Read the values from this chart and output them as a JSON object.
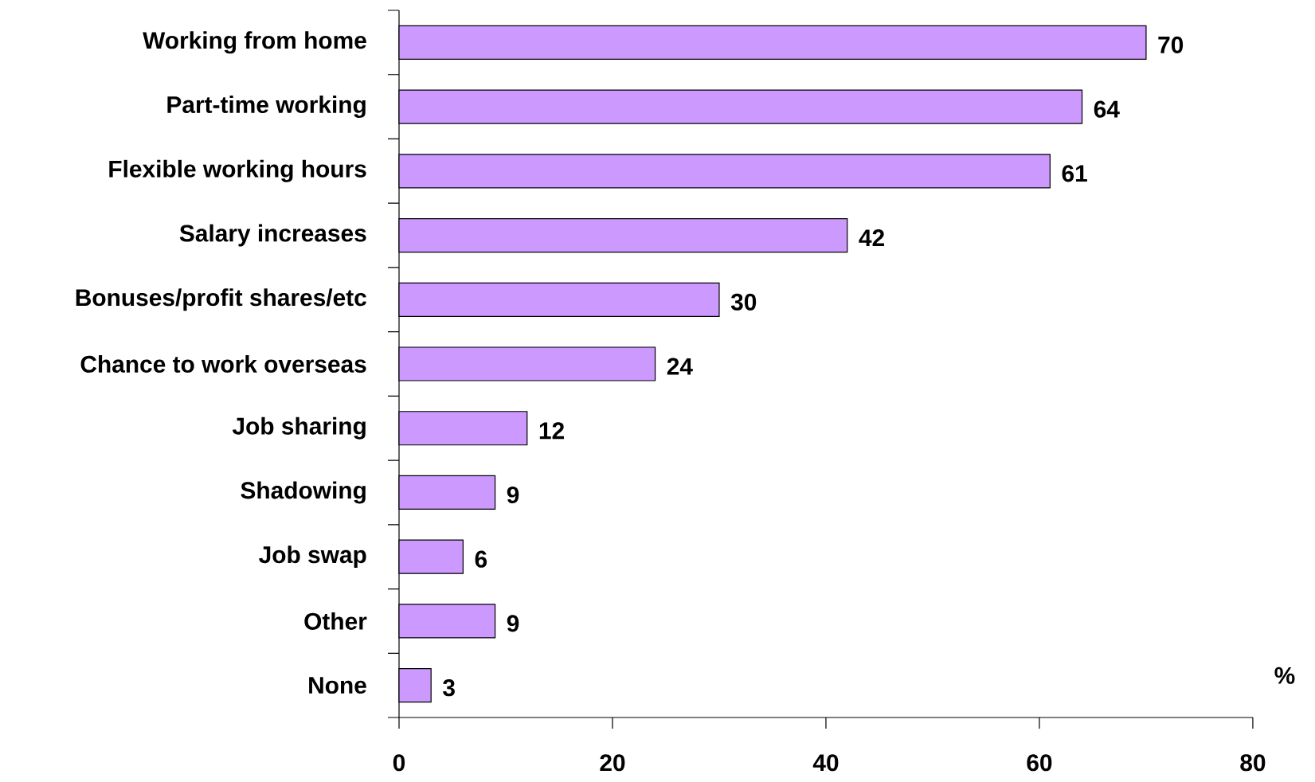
{
  "chart_data": {
    "type": "bar",
    "orientation": "horizontal",
    "categories": [
      "Working from home",
      "Part-time working",
      "Flexible working hours",
      "Salary increases",
      "Bonuses/profit shares/etc",
      "Chance to work overseas",
      "Job sharing",
      "Shadowing",
      "Job swap",
      "Other",
      "None"
    ],
    "values": [
      70,
      64,
      61,
      42,
      30,
      24,
      12,
      9,
      6,
      9,
      3
    ],
    "color": "#cc99ff",
    "xlim": [
      0,
      80
    ],
    "xticks": [
      0,
      20,
      40,
      60,
      80
    ],
    "xlabel": "%",
    "data_labels": true
  }
}
